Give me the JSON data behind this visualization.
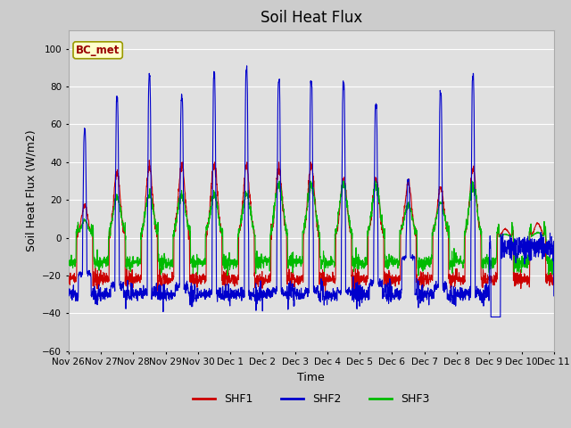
{
  "title": "Soil Heat Flux",
  "xlabel": "Time",
  "ylabel": "Soil Heat Flux (W/m2)",
  "ylim": [
    -60,
    110
  ],
  "yticks": [
    -60,
    -40,
    -20,
    0,
    20,
    40,
    60,
    80,
    100
  ],
  "background_color": "#cccccc",
  "plot_bg_color": "#e0e0e0",
  "grid_color": "#ffffff",
  "shf1_color": "#cc0000",
  "shf2_color": "#0000cc",
  "shf3_color": "#00bb00",
  "legend_label": "BC_met",
  "legend_bg": "#ffffcc",
  "legend_border": "#999900",
  "n_days": 15,
  "points_per_day": 144,
  "xtick_labels": [
    "Nov 26",
    "Nov 27",
    "Nov 28",
    "Nov 29",
    "Nov 30",
    "Dec 1",
    "Dec 2",
    "Dec 3",
    "Dec 4",
    "Dec 5",
    "Dec 6",
    "Dec 7",
    "Dec 8",
    "Dec 9",
    "Dec 10",
    "Dec 11"
  ],
  "line_width": 0.8,
  "title_fontsize": 12,
  "label_fontsize": 9,
  "tick_fontsize": 7.5
}
